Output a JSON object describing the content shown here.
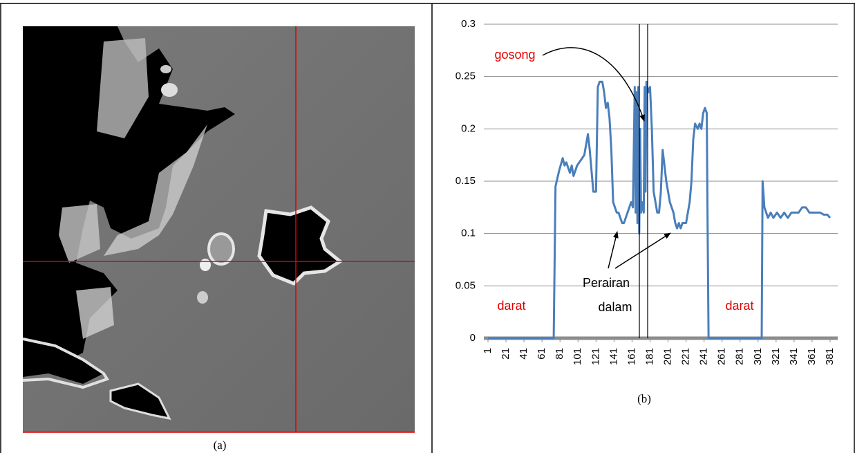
{
  "figure_a": {
    "caption": "(a)"
  },
  "chart_data": {
    "type": "line",
    "caption": "(b)",
    "color": "#4a7ebb",
    "grid": true,
    "xlim": [
      1,
      381
    ],
    "xticks": [
      1,
      21,
      41,
      61,
      81,
      101,
      121,
      141,
      161,
      181,
      201,
      221,
      241,
      261,
      281,
      301,
      321,
      341,
      361,
      381
    ],
    "ylim": [
      0,
      0.3
    ],
    "yticks": [
      0,
      0.05,
      0.1,
      0.15,
      0.2,
      0.25,
      0.3
    ],
    "annotations": [
      "gosong",
      "darat",
      "darat",
      "Perairan",
      "dalam"
    ],
    "x": [
      1,
      74,
      76,
      80,
      84,
      86,
      88,
      92,
      94,
      96,
      100,
      104,
      108,
      110,
      112,
      114,
      116,
      118,
      121,
      123,
      125,
      128,
      130,
      132,
      134,
      136,
      138,
      140,
      142,
      144,
      146,
      148,
      150,
      152,
      154,
      156,
      158,
      160,
      162,
      164,
      165,
      166,
      167,
      168,
      169,
      170,
      171,
      172,
      174,
      175,
      176,
      177,
      179,
      181,
      183,
      185,
      187,
      189,
      191,
      193,
      195,
      197,
      199,
      201,
      203,
      205,
      207,
      209,
      211,
      213,
      215,
      217,
      219,
      221,
      223,
      225,
      227,
      229,
      231,
      234,
      236,
      238,
      240,
      242,
      244,
      245,
      246,
      305,
      306,
      308,
      310,
      312,
      315,
      318,
      322,
      326,
      330,
      334,
      338,
      342,
      346,
      350,
      354,
      358,
      362,
      366,
      370,
      374,
      378,
      381
    ],
    "values": [
      0,
      0,
      0.145,
      0.16,
      0.172,
      0.165,
      0.168,
      0.158,
      0.165,
      0.155,
      0.165,
      0.17,
      0.175,
      0.185,
      0.195,
      0.18,
      0.16,
      0.14,
      0.14,
      0.24,
      0.245,
      0.245,
      0.235,
      0.22,
      0.225,
      0.21,
      0.18,
      0.13,
      0.125,
      0.12,
      0.12,
      0.115,
      0.11,
      0.11,
      0.115,
      0.12,
      0.125,
      0.13,
      0.125,
      0.24,
      0.12,
      0.235,
      0.11,
      0.24,
      0.1,
      0.2,
      0.12,
      0.13,
      0.12,
      0.24,
      0.14,
      0.245,
      0.235,
      0.24,
      0.2,
      0.14,
      0.13,
      0.12,
      0.12,
      0.14,
      0.18,
      0.165,
      0.15,
      0.14,
      0.13,
      0.125,
      0.12,
      0.11,
      0.105,
      0.11,
      0.105,
      0.11,
      0.11,
      0.11,
      0.12,
      0.13,
      0.15,
      0.19,
      0.205,
      0.2,
      0.205,
      0.2,
      0.215,
      0.22,
      0.215,
      0.1,
      0,
      0,
      0.15,
      0.125,
      0.12,
      0.115,
      0.12,
      0.115,
      0.12,
      0.115,
      0.12,
      0.115,
      0.12,
      0.12,
      0.12,
      0.125,
      0.125,
      0.12,
      0.12,
      0.12,
      0.12,
      0.118,
      0.118,
      0.115
    ]
  }
}
